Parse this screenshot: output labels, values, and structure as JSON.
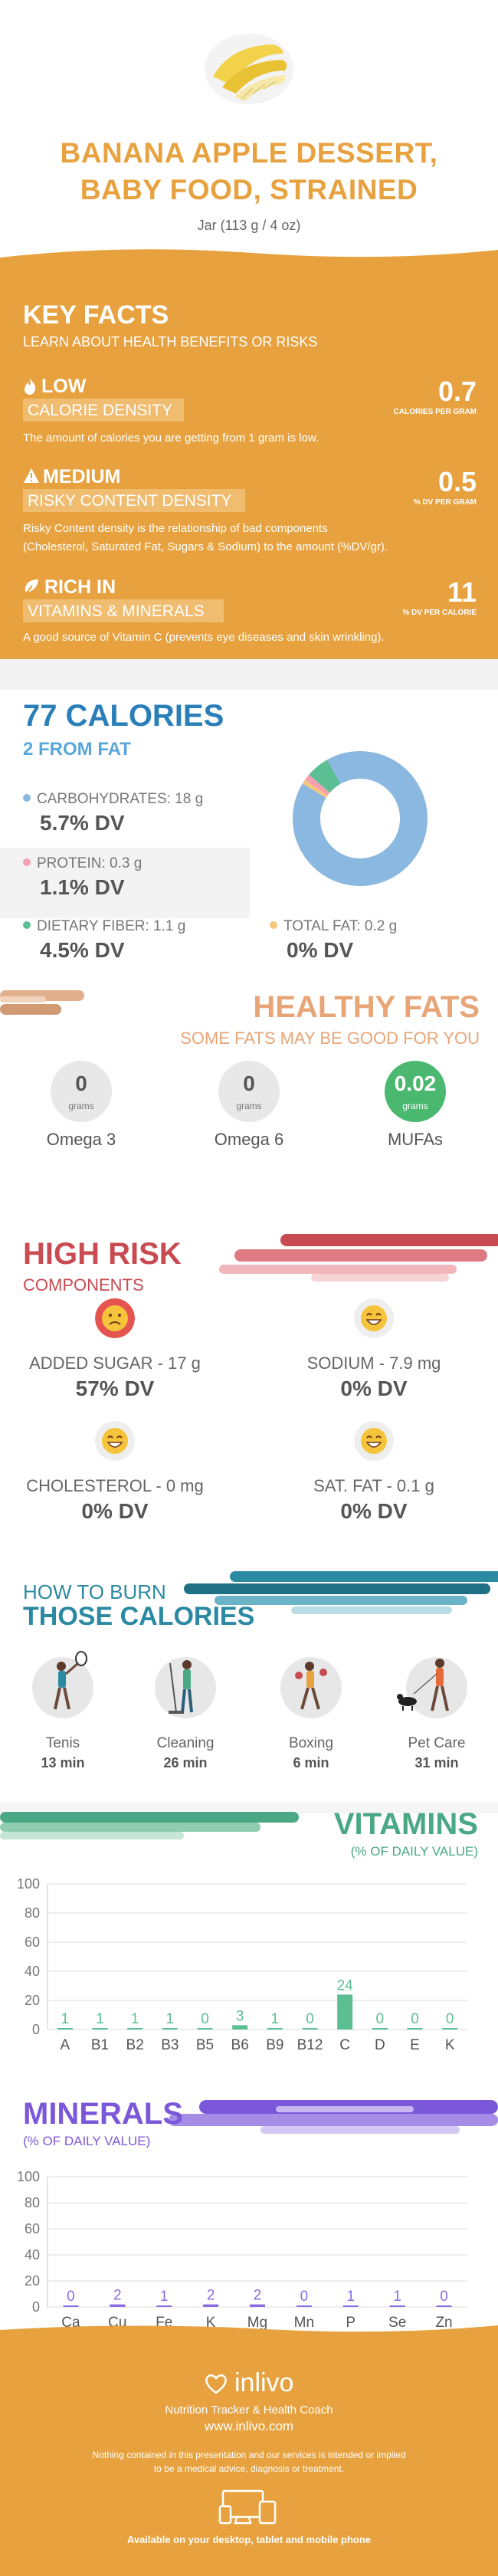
{
  "header": {
    "title_line1": "BANANA APPLE DESSERT,",
    "title_line2": "BABY FOOD, STRAINED",
    "serving": "Jar (113 g / 4 oz)",
    "image_icon": "banana-image"
  },
  "key_facts": {
    "title": "KEY FACTS",
    "subtitle": "LEARN ABOUT HEALTH BENEFITS OR RISKS",
    "calorie_density": {
      "level": "LOW",
      "label": "CALORIE DENSITY",
      "value": "0.7",
      "unit": "CALORIES PER GRAM",
      "description": "The amount of calories you are getting from 1 gram is low.",
      "icon": "flame-icon"
    },
    "risky_content": {
      "level": "MEDIUM",
      "label": "RISKY CONTENT DENSITY",
      "value": "0.5",
      "unit": "% DV PER GRAM",
      "description_line1": "Risky Content density is the relationship of bad components",
      "description_line2": "(Cholesterol, Saturated Fat, Sugars & Sodium) to the amount (%DV/gr).",
      "icon": "warning-icon"
    },
    "rich_in": {
      "level": "RICH  IN",
      "label": "VITAMINS & MINERALS",
      "value": "11",
      "unit": "% DV PER CALORIE",
      "description": "A good source of Vitamin C (prevents eye diseases and skin wrinkling).",
      "icon": "leaf-icon"
    }
  },
  "calories": {
    "title": "77 CALORIES",
    "from_fat": "2 FROM FAT",
    "carbs": {
      "label": "CARBOHYDRATES: 18 g",
      "dv": "5.7% DV",
      "color": "#8ab8e0"
    },
    "protein": {
      "label": "PROTEIN: 0.3 g",
      "dv": "1.1% DV",
      "color": "#f4a0b0"
    },
    "fiber": {
      "label": "DIETARY FIBER: 1.1 g",
      "dv": "4.5% DV",
      "color": "#5cbf93"
    },
    "fat": {
      "label": "TOTAL FAT: 0.2 g",
      "dv": "0% DV",
      "color": "#f5c77a"
    },
    "donut": {
      "carbs_grams": 18,
      "protein_grams": 0.3,
      "fiber_grams": 1.1,
      "fat_grams": 0.2
    }
  },
  "healthy_fats": {
    "title": "HEALTHY FATS",
    "subtitle": "SOME FATS MAY BE GOOD FOR YOU",
    "items": [
      {
        "value": "0",
        "unit": "grams",
        "name": "Omega 3"
      },
      {
        "value": "0",
        "unit": "grams",
        "name": "Omega 6"
      },
      {
        "value": "0.02",
        "unit": "grams",
        "name": "MUFAs"
      }
    ]
  },
  "high_risk": {
    "title": "HIGH RISK",
    "subtitle": "COMPONENTS",
    "items": [
      {
        "label": "ADDED SUGAR - 17 g",
        "dv": "57% DV",
        "icon": "sad-face-icon",
        "color": "#e5544f"
      },
      {
        "label": "SODIUM - 7.9 mg",
        "dv": "0% DV",
        "icon": "happy-face-icon",
        "color": "#f5c43b"
      },
      {
        "label": "CHOLESTEROL - 0 mg",
        "dv": "0% DV",
        "icon": "happy-face-icon",
        "color": "#f5c43b"
      },
      {
        "label": "SAT. FAT - 0.1 g",
        "dv": "0% DV",
        "icon": "happy-face-icon",
        "color": "#f5c43b"
      }
    ]
  },
  "burn": {
    "title_line1": "HOW TO BURN",
    "title_line2": "THOSE CALORIES",
    "items": [
      {
        "name": "Tenis",
        "minutes": "13 min",
        "icon": "tennis-player-icon"
      },
      {
        "name": "Cleaning",
        "minutes": "26 min",
        "icon": "cleaning-person-icon"
      },
      {
        "name": "Boxing",
        "minutes": "6 min",
        "icon": "boxer-icon"
      },
      {
        "name": "Pet Care",
        "minutes": "31 min",
        "icon": "dog-walker-icon"
      }
    ]
  },
  "vitamins": {
    "title": "VITAMINS",
    "subtitle": "(% OF DAILY VALUE)",
    "chart_data": {
      "type": "bar",
      "categories": [
        "A",
        "B1",
        "B2",
        "B3",
        "B5",
        "B6",
        "B9",
        "B12",
        "C",
        "D",
        "E",
        "K"
      ],
      "values": [
        1,
        1,
        1,
        1,
        0,
        3,
        1,
        0,
        24,
        0,
        0,
        0
      ],
      "ylim": [
        0,
        100
      ],
      "yticks": [
        0,
        20,
        40,
        60,
        80,
        100
      ],
      "color": "#5cbf93"
    }
  },
  "minerals": {
    "title": "MINERALS",
    "subtitle": "(% OF DAILY VALUE)",
    "chart_data": {
      "type": "bar",
      "categories": [
        "Ca",
        "Cu",
        "Fe",
        "K",
        "Mg",
        "Mn",
        "P",
        "Se",
        "Zn"
      ],
      "values": [
        0,
        2,
        1,
        2,
        2,
        0,
        1,
        1,
        0
      ],
      "ylim": [
        0,
        100
      ],
      "yticks": [
        0,
        20,
        40,
        60,
        80,
        100
      ],
      "color": "#8a6de0"
    }
  },
  "footer": {
    "brand": "inlivo",
    "tagline": "Nutrition Tracker & Health Coach",
    "url": "www.inlivo.com",
    "disclaimer_line1": "Nothing contained in this presentation and our services is intended or implied",
    "disclaimer_line2": "to be a medical advice, diagnosis or treatment.",
    "devices": "Available on your desktop, tablet and mobile phone"
  }
}
